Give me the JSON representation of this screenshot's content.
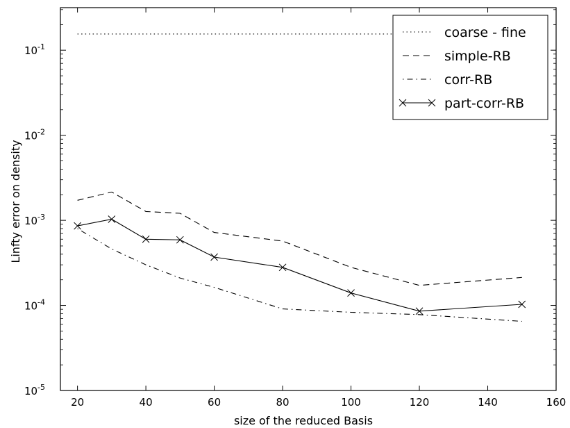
{
  "chart_data": {
    "type": "line",
    "xlabel": "size of the reduced Basis",
    "ylabel": "Linfty error on density",
    "xlim": [
      15,
      160
    ],
    "ylim_log10": [
      -5,
      -0.5
    ],
    "y_scale": "log",
    "x_ticks": [
      20,
      40,
      60,
      80,
      100,
      120,
      140,
      160
    ],
    "y_ticks": [
      {
        "exp": -5,
        "label": "-5"
      },
      {
        "exp": -4,
        "label": "-4"
      },
      {
        "exp": -3,
        "label": "-3"
      },
      {
        "exp": -2,
        "label": "-2"
      },
      {
        "exp": -1,
        "label": "-1"
      }
    ],
    "y_tick_base": "10",
    "legend_position": "top-right",
    "grid": false,
    "series": [
      {
        "name": "coarse - fine",
        "style": "dotted",
        "marker": "none",
        "color": "#000000",
        "x": [
          20,
          150
        ],
        "y": [
          0.155,
          0.155
        ]
      },
      {
        "name": "simple-RB",
        "style": "dashed",
        "marker": "none",
        "color": "#000000",
        "x": [
          20,
          30,
          40,
          50,
          60,
          80,
          100,
          120,
          150
        ],
        "y": [
          0.00172,
          0.00215,
          0.00127,
          0.00121,
          0.00072,
          0.00057,
          0.00028,
          0.000172,
          0.000213
        ]
      },
      {
        "name": "corr-RB",
        "style": "dashdot",
        "marker": "none",
        "color": "#000000",
        "x": [
          20,
          30,
          40,
          50,
          60,
          80,
          100,
          120,
          150
        ],
        "y": [
          0.0008,
          0.00046,
          0.0003,
          0.00021,
          0.000163,
          9.1e-05,
          8.3e-05,
          7.8e-05,
          6.5e-05
        ]
      },
      {
        "name": "part-corr-RB",
        "style": "solid",
        "marker": "x",
        "color": "#000000",
        "x": [
          20,
          30,
          40,
          50,
          60,
          80,
          100,
          120,
          150
        ],
        "y": [
          0.00086,
          0.00103,
          0.0006,
          0.00059,
          0.00037,
          0.00028,
          0.00014,
          8.57e-05,
          0.000103
        ]
      }
    ]
  }
}
